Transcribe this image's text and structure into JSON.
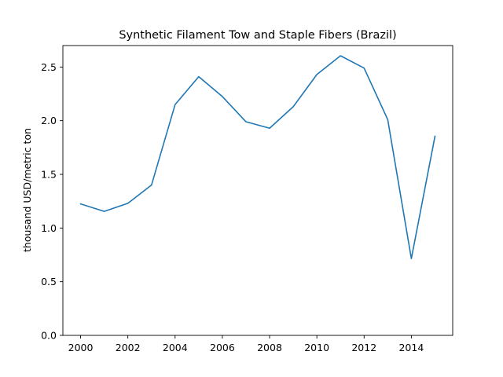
{
  "chart_data": {
    "type": "line",
    "title": "Synthetic Filament Tow and Staple Fibers (Brazil)",
    "xlabel": "",
    "ylabel": "thousand USD/metric ton",
    "xlim": [
      1999.25,
      2015.75
    ],
    "ylim": [
      0.0,
      2.7
    ],
    "x_ticks": [
      2000,
      2002,
      2004,
      2006,
      2008,
      2010,
      2012,
      2014
    ],
    "y_ticks": [
      0.0,
      0.5,
      1.0,
      1.5,
      2.0,
      2.5
    ],
    "x_tick_labels": [
      "2000",
      "2002",
      "2004",
      "2006",
      "2008",
      "2010",
      "2012",
      "2014"
    ],
    "y_tick_labels": [
      "0.0",
      "0.5",
      "1.0",
      "1.5",
      "2.0",
      "2.5"
    ],
    "grid": false,
    "series": [
      {
        "color": "#1f77b4",
        "x": [
          2000,
          2001,
          2002,
          2003,
          2004,
          2005,
          2006,
          2007,
          2008,
          2009,
          2010,
          2011,
          2012,
          2013,
          2014,
          2015
        ],
        "values": [
          1.225,
          1.155,
          1.23,
          1.4,
          2.15,
          2.41,
          2.225,
          1.99,
          1.93,
          2.13,
          2.43,
          2.605,
          2.49,
          2.01,
          0.715,
          1.855
        ]
      }
    ]
  }
}
